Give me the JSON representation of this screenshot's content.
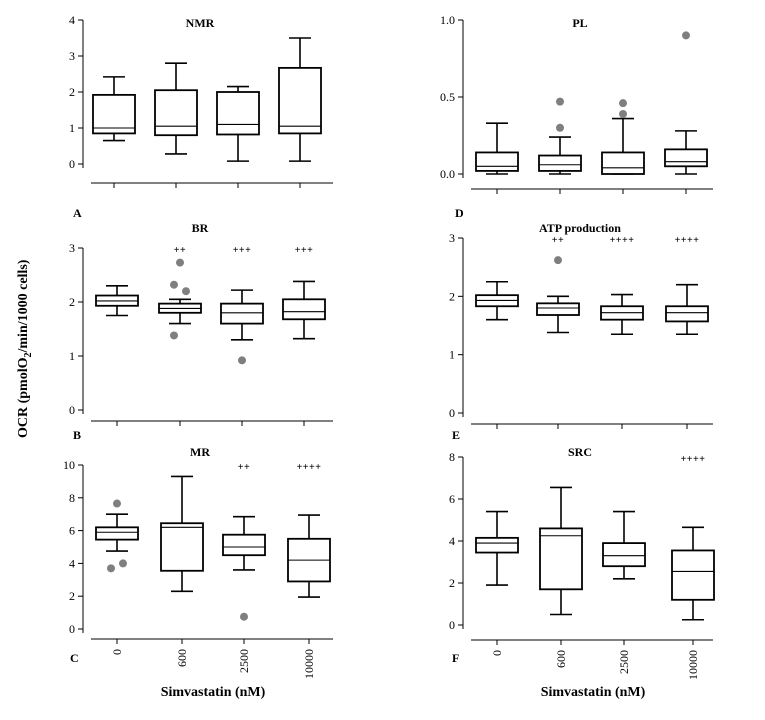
{
  "figure": {
    "ylabel": "OCR (pmolO2/min/1000 cells)",
    "ylabel_main": "OCR (pmolO",
    "ylabel_sub": "2",
    "ylabel_rest": "/min/1000 cells)",
    "xlabel": "Simvastatin (nM)",
    "categories": [
      "0",
      "600",
      "2500",
      "10000"
    ]
  },
  "colors": {
    "box_stroke": "#000000",
    "outlier": "#7f7f7f"
  },
  "chart_data": [
    {
      "id": "A",
      "letter": "A",
      "title": "NMR",
      "type": "box",
      "ylim": [
        0,
        4
      ],
      "yticks": [
        "0",
        "1",
        "2",
        "3",
        "4"
      ],
      "categories": [
        "0",
        "600",
        "2500",
        "10000"
      ],
      "boxes": [
        {
          "min": 0.65,
          "q1": 0.85,
          "median": 1.0,
          "q3": 1.92,
          "max": 2.42,
          "outliers": []
        },
        {
          "min": 0.28,
          "q1": 0.8,
          "median": 1.05,
          "q3": 2.05,
          "max": 2.8,
          "outliers": []
        },
        {
          "min": 0.08,
          "q1": 0.82,
          "median": 1.1,
          "q3": 2.0,
          "max": 2.15,
          "outliers": []
        },
        {
          "min": 0.08,
          "q1": 0.85,
          "median": 1.05,
          "q3": 2.67,
          "max": 3.5,
          "outliers": []
        }
      ],
      "significance": [
        "",
        "",
        "",
        ""
      ]
    },
    {
      "id": "D",
      "letter": "D",
      "title": "PL",
      "type": "box",
      "ylim": [
        0,
        1
      ],
      "yticks": [
        "0.0",
        "0.5",
        "1.0"
      ],
      "categories": [
        "0",
        "600",
        "2500",
        "10000"
      ],
      "boxes": [
        {
          "min": 0.0,
          "q1": 0.02,
          "median": 0.05,
          "q3": 0.14,
          "max": 0.33,
          "outliers": []
        },
        {
          "min": 0.0,
          "q1": 0.02,
          "median": 0.06,
          "q3": 0.12,
          "max": 0.24,
          "outliers": [
            0.3,
            0.47
          ]
        },
        {
          "min": 0.0,
          "q1": 0.0,
          "median": 0.04,
          "q3": 0.14,
          "max": 0.36,
          "outliers": [
            0.39,
            0.46
          ]
        },
        {
          "min": 0.0,
          "q1": 0.05,
          "median": 0.08,
          "q3": 0.16,
          "max": 0.28,
          "outliers": [
            0.9
          ]
        }
      ],
      "significance": [
        "",
        "",
        "",
        ""
      ]
    },
    {
      "id": "B",
      "letter": "B",
      "title": "BR",
      "type": "box",
      "ylim": [
        0,
        3
      ],
      "yticks": [
        "0",
        "1",
        "2",
        "3"
      ],
      "categories": [
        "0",
        "600",
        "2500",
        "10000"
      ],
      "boxes": [
        {
          "min": 1.75,
          "q1": 1.93,
          "median": 2.02,
          "q3": 2.12,
          "max": 2.3,
          "outliers": []
        },
        {
          "min": 1.6,
          "q1": 1.8,
          "median": 1.88,
          "q3": 1.97,
          "max": 2.05,
          "outliers": [
            1.38,
            2.2,
            2.32,
            2.73
          ]
        },
        {
          "min": 1.3,
          "q1": 1.6,
          "median": 1.8,
          "q3": 1.97,
          "max": 2.22,
          "outliers": [
            0.92
          ]
        },
        {
          "min": 1.32,
          "q1": 1.68,
          "median": 1.82,
          "q3": 2.05,
          "max": 2.38,
          "outliers": []
        }
      ],
      "significance": [
        "",
        "++",
        "+++",
        "+++"
      ]
    },
    {
      "id": "E",
      "letter": "E",
      "title": "ATP production",
      "type": "box",
      "ylim": [
        0,
        3
      ],
      "yticks": [
        "0",
        "1",
        "2",
        "3"
      ],
      "categories": [
        "0",
        "600",
        "2500",
        "10000"
      ],
      "boxes": [
        {
          "min": 1.6,
          "q1": 1.83,
          "median": 1.93,
          "q3": 2.02,
          "max": 2.25,
          "outliers": []
        },
        {
          "min": 1.38,
          "q1": 1.68,
          "median": 1.8,
          "q3": 1.88,
          "max": 2.0,
          "outliers": [
            2.62
          ]
        },
        {
          "min": 1.35,
          "q1": 1.6,
          "median": 1.72,
          "q3": 1.83,
          "max": 2.03,
          "outliers": []
        },
        {
          "min": 1.35,
          "q1": 1.57,
          "median": 1.72,
          "q3": 1.83,
          "max": 2.2,
          "outliers": []
        }
      ],
      "significance": [
        "",
        "++",
        "++++",
        "++++"
      ]
    },
    {
      "id": "C",
      "letter": "C",
      "title": "MR",
      "type": "box",
      "ylim": [
        0,
        10
      ],
      "yticks": [
        "0",
        "2",
        "4",
        "6",
        "8",
        "10"
      ],
      "categories": [
        "0",
        "600",
        "2500",
        "10000"
      ],
      "boxes": [
        {
          "min": 4.75,
          "q1": 5.45,
          "median": 5.9,
          "q3": 6.2,
          "max": 7.0,
          "outliers": [
            3.7,
            4.0,
            7.65
          ]
        },
        {
          "min": 2.3,
          "q1": 3.55,
          "median": 6.2,
          "q3": 6.45,
          "max": 9.3,
          "outliers": []
        },
        {
          "min": 3.6,
          "q1": 4.5,
          "median": 5.0,
          "q3": 5.75,
          "max": 6.85,
          "outliers": [
            0.75
          ]
        },
        {
          "min": 1.95,
          "q1": 2.9,
          "median": 4.2,
          "q3": 5.5,
          "max": 6.95,
          "outliers": []
        }
      ],
      "significance": [
        "",
        "",
        "++",
        "++++"
      ]
    },
    {
      "id": "F",
      "letter": "F",
      "title": "SRC",
      "type": "box",
      "ylim": [
        0,
        8
      ],
      "yticks": [
        "0",
        "2",
        "4",
        "6",
        "8"
      ],
      "categories": [
        "0",
        "600",
        "2500",
        "10000"
      ],
      "boxes": [
        {
          "min": 1.9,
          "q1": 3.45,
          "median": 3.9,
          "q3": 4.15,
          "max": 5.4,
          "outliers": []
        },
        {
          "min": 0.5,
          "q1": 1.7,
          "median": 4.25,
          "q3": 4.6,
          "max": 6.55,
          "outliers": []
        },
        {
          "min": 2.2,
          "q1": 2.8,
          "median": 3.3,
          "q3": 3.9,
          "max": 5.4,
          "outliers": []
        },
        {
          "min": 0.25,
          "q1": 1.2,
          "median": 2.55,
          "q3": 3.55,
          "max": 4.65,
          "outliers": []
        }
      ],
      "significance": [
        "",
        "",
        "",
        "++++"
      ]
    }
  ]
}
